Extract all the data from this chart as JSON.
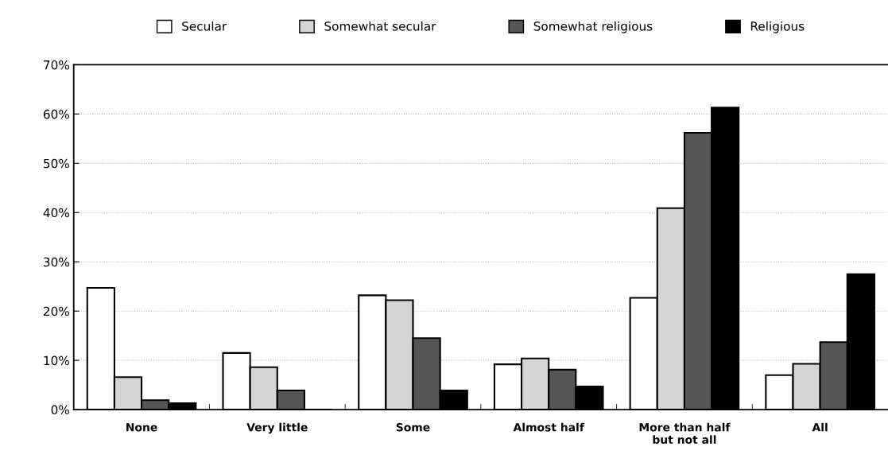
{
  "chart_data": {
    "type": "bar",
    "categories": [
      "None",
      "Very little",
      "Some",
      "Almost half",
      "More than half\nbut not all",
      "All"
    ],
    "series": [
      {
        "name": "Secular",
        "color": "#ffffff",
        "values": [
          24.7,
          11.5,
          23.2,
          9.2,
          22.7,
          7.0
        ]
      },
      {
        "name": "Somewhat secular",
        "color": "#d4d4d4",
        "values": [
          6.6,
          8.6,
          22.2,
          10.4,
          40.9,
          9.3
        ]
      },
      {
        "name": "Somewhat religious",
        "color": "#555555",
        "values": [
          1.9,
          3.9,
          14.5,
          8.1,
          56.2,
          13.7
        ]
      },
      {
        "name": "Religious",
        "color": "#000000",
        "values": [
          1.3,
          0,
          3.9,
          4.7,
          61.3,
          27.5
        ]
      }
    ],
    "ylim": [
      0,
      70
    ],
    "yticks": [
      {
        "value": 0,
        "label": "0%"
      },
      {
        "value": 10,
        "label": "10%"
      },
      {
        "value": 20,
        "label": "20%"
      },
      {
        "value": 30,
        "label": "30%"
      },
      {
        "value": 40,
        "label": "40%"
      },
      {
        "value": 50,
        "label": "50%"
      },
      {
        "value": 60,
        "label": "60%"
      },
      {
        "value": 70,
        "label": "70%"
      }
    ],
    "grid": "y",
    "legend": "top"
  }
}
